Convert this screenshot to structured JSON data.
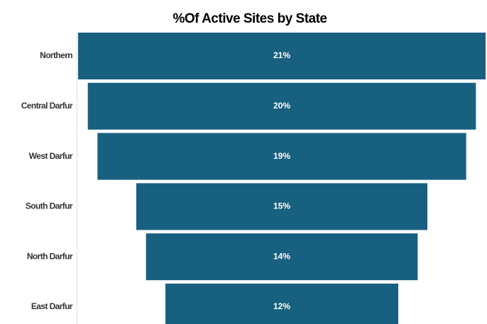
{
  "chart_data": {
    "type": "funnel",
    "title": "%Of Active Sites by State",
    "categories": [
      "Northern",
      "Central Darfur",
      "West Darfur",
      "South Darfur",
      "North Darfur",
      "East Darfur"
    ],
    "values": [
      21,
      20,
      19,
      15,
      14,
      12
    ],
    "value_labels": [
      "21%",
      "20%",
      "19%",
      "15%",
      "14%",
      "12%"
    ],
    "color": "#17607f"
  }
}
